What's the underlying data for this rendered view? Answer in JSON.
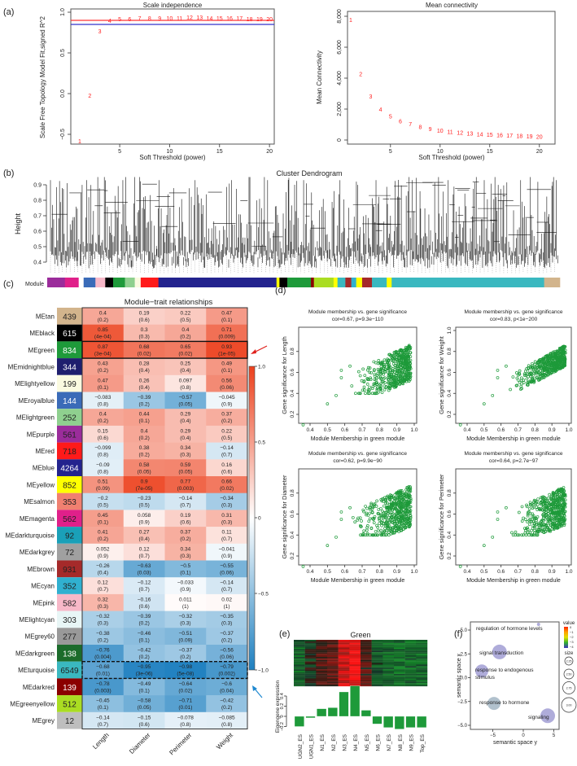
{
  "panel_labels": {
    "a": "(a)",
    "b": "(b)",
    "c": "(c)",
    "d": "(d)",
    "e": "(e)",
    "f": "(f)"
  },
  "chart_data": {
    "scale_independence": {
      "type": "scatter",
      "title": "Scale independence",
      "xlabel": "Soft Threshold (power)",
      "ylabel": "Scale Free Topology Model Fit,signed R^2",
      "xlim": [
        0.5,
        20.5
      ],
      "ylim": [
        -0.6,
        1.0
      ],
      "xticks": [
        "5",
        "10",
        "15",
        "20"
      ],
      "yticks": [
        "−0.5",
        "0.0",
        "0.5",
        "1.0"
      ],
      "x": [
        1,
        2,
        3,
        4,
        5,
        6,
        7,
        8,
        9,
        10,
        11,
        12,
        13,
        14,
        15,
        16,
        17,
        18,
        19,
        20
      ],
      "y": [
        -0.58,
        -0.02,
        0.77,
        0.9,
        0.92,
        0.92,
        0.93,
        0.93,
        0.93,
        0.93,
        0.93,
        0.94,
        0.94,
        0.93,
        0.93,
        0.93,
        0.93,
        0.92,
        0.92,
        0.92
      ],
      "hlines": [
        {
          "value": 0.9,
          "color": "#ff3333"
        },
        {
          "value": 0.85,
          "color": "#3333cc"
        }
      ],
      "point_color": "#ff2020"
    },
    "mean_connectivity": {
      "type": "scatter",
      "title": "Mean connectivity",
      "xlabel": "Soft Threshold (power)",
      "ylabel": "Mean Connectivity",
      "xlim": [
        0.5,
        20.5
      ],
      "ylim": [
        0,
        8000
      ],
      "xticks": [
        "5",
        "10",
        "15",
        "20"
      ],
      "yticks": [
        "0",
        "2,000",
        "4,000",
        "6,000",
        "8,000"
      ],
      "x": [
        1,
        2,
        3,
        4,
        5,
        6,
        7,
        8,
        9,
        10,
        11,
        12,
        13,
        14,
        15,
        16,
        17,
        18,
        19,
        20
      ],
      "y": [
        7800,
        4300,
        2850,
        2000,
        1550,
        1250,
        1050,
        880,
        750,
        620,
        550,
        490,
        440,
        400,
        370,
        340,
        310,
        290,
        270,
        250
      ]
    },
    "dendrogram": {
      "title": "Cluster Dendrogram",
      "ylabel": "Height",
      "yticks": [
        "0.4",
        "0.5",
        "0.6",
        "0.7",
        "0.8",
        "0.9"
      ],
      "color_bar_label": "Module"
    },
    "module_trait": {
      "type": "heatmap",
      "title": "Module−trait relationships",
      "columns": [
        "Length",
        "Diameter",
        "Perimeter",
        "Weight"
      ],
      "colorbar_ticks": [
        "1.0",
        "0.5",
        "0",
        "−0.5",
        "−1.0"
      ],
      "highlight_solid": "MEgreen",
      "highlight_dashed": "MEturquoise",
      "rows": [
        {
          "name": "MEtan",
          "count": "439",
          "color": "#d2b48c",
          "text": "#222",
          "cor": [
            0.4,
            0.19,
            0.22,
            0.47
          ],
          "p": [
            "(0.2)",
            "(0.6)",
            "(0.5)",
            "(0.1)"
          ]
        },
        {
          "name": "MEblack",
          "count": "615",
          "color": "#000000",
          "text": "#fff",
          "cor": [
            0.85,
            0.3,
            0.4,
            0.71
          ],
          "p": [
            "(4e-04)",
            "(0.3)",
            "(0.2)",
            "(0.009)"
          ]
        },
        {
          "name": "MEgreen",
          "count": "834",
          "color": "#1e9a3a",
          "text": "#fff",
          "cor": [
            0.87,
            0.68,
            0.65,
            0.93
          ],
          "p": [
            "(3e-04)",
            "(0.02)",
            "(0.02)",
            "(1e-05)"
          ]
        },
        {
          "name": "MEmidnightblue",
          "count": "344",
          "color": "#1f1f6e",
          "text": "#fff",
          "cor": [
            0.43,
            0.28,
            0.25,
            0.49
          ],
          "p": [
            "(0.2)",
            "(0.4)",
            "(0.4)",
            "(0.1)"
          ]
        },
        {
          "name": "MElightyellow",
          "count": "199",
          "color": "#fafae0",
          "text": "#222",
          "cor": [
            0.47,
            0.26,
            0.097,
            0.56
          ],
          "p": [
            "(0.1)",
            "(0.4)",
            "(0.8)",
            "(0.06)"
          ]
        },
        {
          "name": "MEroyalblue",
          "count": "144",
          "color": "#3a6bb8",
          "text": "#fff",
          "cor": [
            -0.083,
            -0.39,
            -0.57,
            -0.045
          ],
          "p": [
            "(0.8)",
            "(0.2)",
            "(0.05)",
            "(0.9)"
          ]
        },
        {
          "name": "MElightgreen",
          "count": "252",
          "color": "#8fd08f",
          "text": "#222",
          "cor": [
            0.4,
            0.44,
            0.29,
            0.37
          ],
          "p": [
            "(0.2)",
            "(0.1)",
            "(0.4)",
            "(0.2)"
          ]
        },
        {
          "name": "MEpurple",
          "count": "561",
          "color": "#9b2c9b",
          "text": "#222",
          "cor": [
            0.15,
            0.4,
            0.29,
            0.22
          ],
          "p": [
            "(0.6)",
            "(0.2)",
            "(0.4)",
            "(0.5)"
          ]
        },
        {
          "name": "MEred",
          "count": "718",
          "color": "#ff1a1a",
          "text": "#222",
          "cor": [
            -0.099,
            0.38,
            0.34,
            -0.14
          ],
          "p": [
            "(0.8)",
            "(0.2)",
            "(0.3)",
            "(0.7)"
          ]
        },
        {
          "name": "MEblue",
          "count": "4264",
          "color": "#23238e",
          "text": "#fff",
          "cor": [
            -0.09,
            0.58,
            0.59,
            0.16
          ],
          "p": [
            "(0.8)",
            "(0.05)",
            "(0.05)",
            "(0.6)"
          ]
        },
        {
          "name": "MEyellow",
          "count": "852",
          "color": "#ffff00",
          "text": "#222",
          "cor": [
            0.51,
            0.9,
            0.77,
            0.66
          ],
          "p": [
            "(0.09)",
            "(7e-05)",
            "(0.003)",
            "(0.02)"
          ]
        },
        {
          "name": "MEsalmon",
          "count": "353",
          "color": "#f08070",
          "text": "#222",
          "cor": [
            -0.2,
            -0.23,
            -0.14,
            -0.34
          ],
          "p": [
            "(0.5)",
            "(0.5)",
            "(0.7)",
            "(0.3)"
          ]
        },
        {
          "name": "MEmagenta",
          "count": "562",
          "color": "#e0208a",
          "text": "#222",
          "cor": [
            0.45,
            0.058,
            0.19,
            0.31
          ],
          "p": [
            "(0.1)",
            "(0.9)",
            "(0.6)",
            "(0.3)"
          ]
        },
        {
          "name": "MEdarkturquoise",
          "count": "92",
          "color": "#1aa0b8",
          "text": "#222",
          "cor": [
            0.41,
            0.27,
            0.37,
            0.11
          ],
          "p": [
            "(0.2)",
            "(0.4)",
            "(0.2)",
            "(0.7)"
          ]
        },
        {
          "name": "MEdarkgrey",
          "count": "72",
          "color": "#a0a0a0",
          "text": "#222",
          "cor": [
            0.052,
            0.12,
            0.34,
            -0.041
          ],
          "p": [
            "(0.9)",
            "(0.7)",
            "(0.3)",
            "(0.9)"
          ]
        },
        {
          "name": "MEbrown",
          "count": "931",
          "color": "#a52a2a",
          "text": "#222",
          "cor": [
            -0.26,
            -0.63,
            -0.5,
            -0.55
          ],
          "p": [
            "(0.4)",
            "(0.03)",
            "(0.1)",
            "(0.06)"
          ]
        },
        {
          "name": "MEcyan",
          "count": "352",
          "color": "#30b0d0",
          "text": "#222",
          "cor": [
            0.12,
            -0.12,
            -0.033,
            -0.14
          ],
          "p": [
            "(0.7)",
            "(0.7)",
            "(0.9)",
            "(0.7)"
          ]
        },
        {
          "name": "MEpink",
          "count": "582",
          "color": "#f7b8c8",
          "text": "#222",
          "cor": [
            0.32,
            -0.16,
            0.011,
            0.02
          ],
          "p": [
            "(0.3)",
            "(0.6)",
            "(1)",
            "(1)"
          ]
        },
        {
          "name": "MElightcyan",
          "count": "303",
          "color": "#e8f6f6",
          "text": "#222",
          "cor": [
            -0.32,
            -0.39,
            -0.32,
            -0.35
          ],
          "p": [
            "(0.3)",
            "(0.2)",
            "(0.3)",
            "(0.3)"
          ]
        },
        {
          "name": "MEgrey60",
          "count": "277",
          "color": "#999999",
          "text": "#222",
          "cor": [
            -0.38,
            -0.46,
            -0.51,
            -0.37
          ],
          "p": [
            "(0.2)",
            "(0.1)",
            "(0.09)",
            "(0.2)"
          ]
        },
        {
          "name": "MEdarkgreen",
          "count": "138",
          "color": "#1b6b2b",
          "text": "#fff",
          "cor": [
            -0.76,
            -0.42,
            -0.37,
            -0.56
          ],
          "p": [
            "(0.004)",
            "(0.2)",
            "(0.2)",
            "(0.06)"
          ]
        },
        {
          "name": "MEturquoise",
          "count": "6549",
          "color": "#3ab8c0",
          "text": "#222",
          "cor": [
            -0.68,
            -0.95,
            -0.98,
            -0.79
          ],
          "p": [
            "(0.01)",
            "(3e-06)",
            "(5e-08)",
            "(0.002)"
          ]
        },
        {
          "name": "MEdarkred",
          "count": "139",
          "color": "#8b0000",
          "text": "#fff",
          "cor": [
            -0.78,
            -0.49,
            -0.64,
            -0.6
          ],
          "p": [
            "(0.003)",
            "(0.1)",
            "(0.02)",
            "(0.04)"
          ]
        },
        {
          "name": "MEgreenyellow",
          "count": "512",
          "color": "#aadd22",
          "text": "#222",
          "cor": [
            -0.45,
            -0.58,
            -0.71,
            -0.42
          ],
          "p": [
            "(0.1)",
            "(0.05)",
            "(0.01)",
            "(0.2)"
          ]
        },
        {
          "name": "MEgrey",
          "count": "12",
          "color": "#bebebe",
          "text": "#222",
          "cor": [
            -0.14,
            -0.15,
            -0.078,
            -0.085
          ],
          "p": [
            "(0.7)",
            "(0.6)",
            "(0.8)",
            "(0.8)"
          ]
        }
      ]
    },
    "membership_scatter": [
      {
        "title": "Module membership vs. gene significance",
        "stat": "cor=0.67, p=9.3e−110",
        "xlabel": "Module Membership in green module",
        "ylabel": "Gene significance for Length",
        "xticks": [
          "0.4",
          "0.5",
          "0.6",
          "0.7",
          "0.8",
          "0.9",
          "1.0"
        ],
        "yticks": [
          "0.2",
          "0.4",
          "0.6",
          "0.8"
        ],
        "cor": 0.67
      },
      {
        "title": "Module membership vs. gene significance",
        "stat": "cor=0.83, p<1e−200",
        "xlabel": "Module Membership in green module",
        "ylabel": "Gene significance for Weight",
        "xticks": [
          "0.4",
          "0.5",
          "0.6",
          "0.7",
          "0.8",
          "0.9",
          "1.0"
        ],
        "yticks": [
          "0.2",
          "0.4",
          "0.6",
          "0.8",
          "1.0"
        ],
        "cor": 0.83
      },
      {
        "title": "Module membership vs. gene significance",
        "stat": "cor=0.62, p=9.9e−90",
        "xlabel": "Module Membership in green module",
        "ylabel": "Gene significance for Diameter",
        "xticks": [
          "0.4",
          "0.5",
          "0.6",
          "0.7",
          "0.8",
          "0.9",
          "1.0"
        ],
        "yticks": [
          "0.2",
          "0.4",
          "0.6",
          "0.8"
        ],
        "cor": 0.62
      },
      {
        "title": "Module membership vs. gene significance",
        "stat": "cor=0.64, p=2.7e−97",
        "xlabel": "Module Membership in green module",
        "ylabel": "Gene significance for Perimeter",
        "xticks": [
          "0.4",
          "0.5",
          "0.6",
          "0.7",
          "0.8",
          "0.9",
          "1.0"
        ],
        "yticks": [
          "0.2",
          "0.4",
          "0.6",
          "0.8"
        ],
        "cor": 0.64
      }
    ],
    "eigengene": {
      "type": "bar",
      "title": "Green",
      "ylabel": "Eigengene expression",
      "categories": [
        "UGN2_ES",
        "UGN1_ES",
        "N1_ES",
        "N2_ES",
        "N3_ES",
        "N4_ES",
        "N5_ES",
        "N6_ES",
        "N7_ES",
        "N8_ES",
        "N9_ES",
        "Top_ES"
      ],
      "values": [
        -0.2,
        -0.03,
        0.15,
        0.17,
        0.48,
        0.6,
        0.12,
        -0.15,
        -0.22,
        -0.25,
        -0.22,
        -0.22
      ],
      "yticks": [
        "−0.2",
        "0",
        "0.2",
        "0.4"
      ],
      "bar_color": "#1e9a3a"
    },
    "go_semantic": {
      "type": "scatter",
      "xlabel": "semantic space y",
      "ylabel": "semantic space x",
      "xticks": [
        "−5",
        "0",
        "5"
      ],
      "yticks": [
        "−5.0",
        "−2.5",
        "0.0",
        "2.5",
        "5.0"
      ],
      "terms": [
        {
          "label": "regulation of hormone levels",
          "x": 2.5,
          "y": 5.6,
          "size": 2.25,
          "value": -4
        },
        {
          "label": "signal transduction",
          "x": -3.9,
          "y": 2.7,
          "size": 3.0,
          "value": -4
        },
        {
          "label": "response to endogenous",
          "label2": "stimulus",
          "x": -6.8,
          "y": 0.7,
          "size": 2.75,
          "value": -4
        },
        {
          "label": "response to hormone",
          "x": -4.8,
          "y": -2.7,
          "size": 2.75,
          "value": -3.5
        },
        {
          "label": "signaling",
          "x": 4.0,
          "y": -4.0,
          "size": 3.0,
          "value": -4
        }
      ],
      "legend_value_title": "value",
      "legend_value_ticks": [
        "0",
        "−1",
        "−2",
        "−3",
        "−4"
      ],
      "legend_size_title": "size",
      "legend_sizes": [
        "2.25",
        "2.50",
        "2.75",
        "3.00"
      ]
    }
  }
}
